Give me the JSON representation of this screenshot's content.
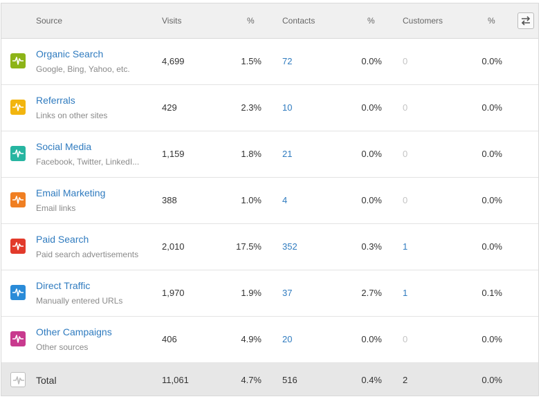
{
  "header": {
    "source": "Source",
    "visits": "Visits",
    "visits_pct": "%",
    "contacts": "Contacts",
    "contacts_pct": "%",
    "customers": "Customers",
    "customers_pct": "%",
    "toggle_icon": "swap-arrows-icon"
  },
  "rows": [
    {
      "name": "Organic Search",
      "sub": "Google, Bing, Yahoo, etc.",
      "color": "#8db418",
      "visits": "4,699",
      "visits_pct": "1.5%",
      "contacts": "72",
      "contacts_pct": "0.0%",
      "customers": "0",
      "customers_pct": "0.0%",
      "customers_active": false
    },
    {
      "name": "Referrals",
      "sub": "Links on other sites",
      "color": "#f2b50f",
      "visits": "429",
      "visits_pct": "2.3%",
      "contacts": "10",
      "contacts_pct": "0.0%",
      "customers": "0",
      "customers_pct": "0.0%",
      "customers_active": false
    },
    {
      "name": "Social Media",
      "sub": "Facebook, Twitter, LinkedI...",
      "color": "#27b5a1",
      "visits": "1,159",
      "visits_pct": "1.8%",
      "contacts": "21",
      "contacts_pct": "0.0%",
      "customers": "0",
      "customers_pct": "0.0%",
      "customers_active": false
    },
    {
      "name": "Email Marketing",
      "sub": "Email links",
      "color": "#f07f22",
      "visits": "388",
      "visits_pct": "1.0%",
      "contacts": "4",
      "contacts_pct": "0.0%",
      "customers": "0",
      "customers_pct": "0.0%",
      "customers_active": false
    },
    {
      "name": "Paid Search",
      "sub": "Paid search advertisements",
      "color": "#e23a2b",
      "visits": "2,010",
      "visits_pct": "17.5%",
      "contacts": "352",
      "contacts_pct": "0.3%",
      "customers": "1",
      "customers_pct": "0.0%",
      "customers_active": true
    },
    {
      "name": "Direct Traffic",
      "sub": "Manually entered URLs",
      "color": "#2a8bd8",
      "visits": "1,970",
      "visits_pct": "1.9%",
      "contacts": "37",
      "contacts_pct": "2.7%",
      "customers": "1",
      "customers_pct": "0.1%",
      "customers_active": true
    },
    {
      "name": "Other Campaigns",
      "sub": "Other sources",
      "color": "#c83a8e",
      "visits": "406",
      "visits_pct": "4.9%",
      "contacts": "20",
      "contacts_pct": "0.0%",
      "customers": "0",
      "customers_pct": "0.0%",
      "customers_active": false
    }
  ],
  "total": {
    "label": "Total",
    "visits": "11,061",
    "visits_pct": "4.7%",
    "contacts": "516",
    "contacts_pct": "0.4%",
    "customers": "2",
    "customers_pct": "0.0%",
    "color": "#bdbdbd"
  },
  "icons": {
    "row_icon": "pulse-icon"
  }
}
